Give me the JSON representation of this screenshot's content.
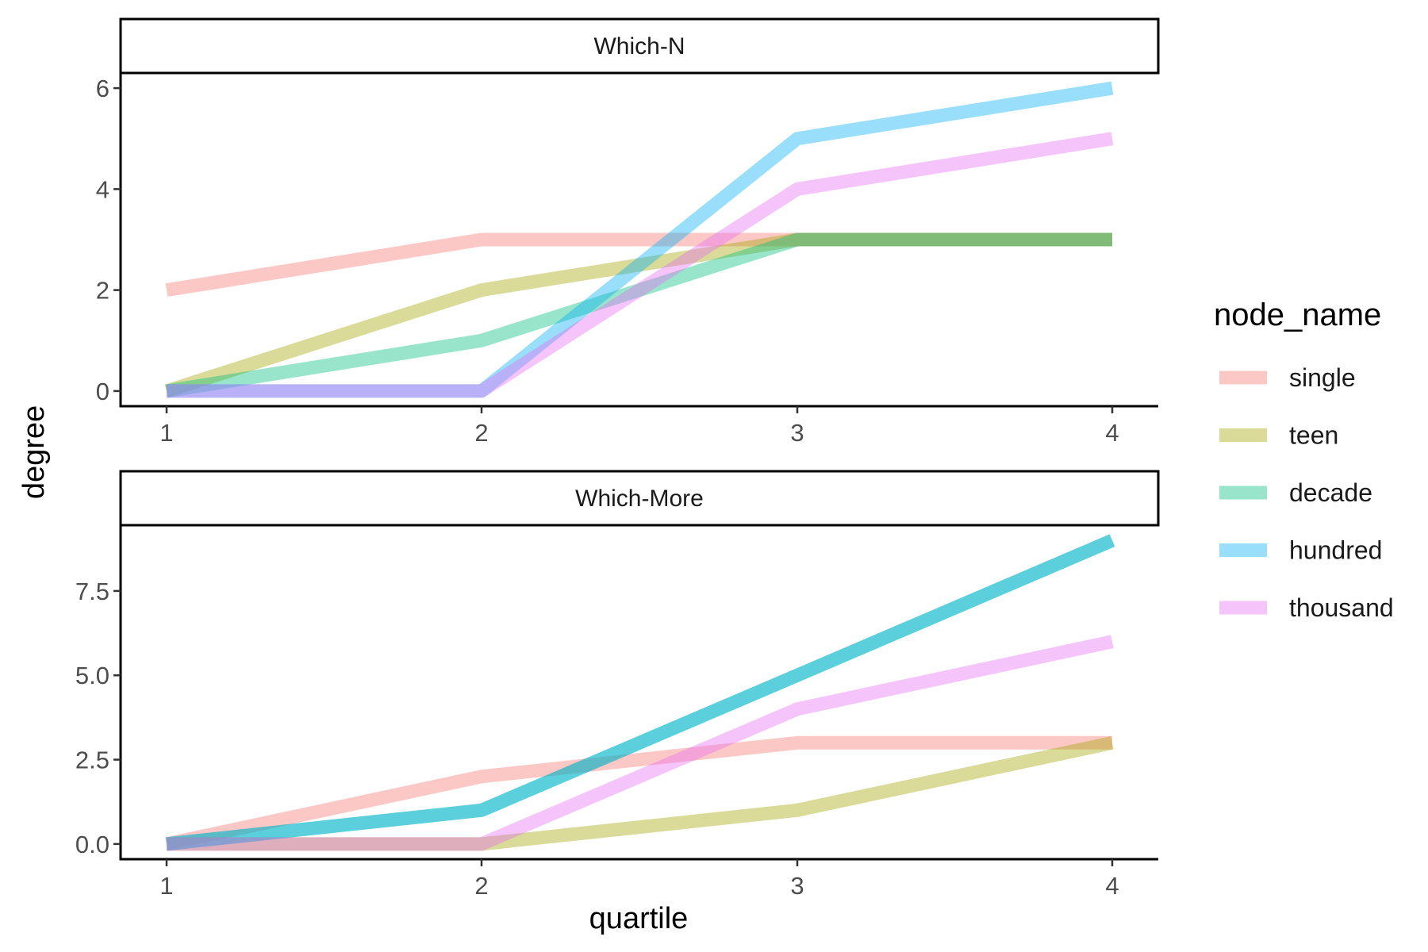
{
  "chart_data": {
    "type": "line",
    "xlabel": "quartile",
    "ylabel": "degree",
    "x": [
      1,
      2,
      3,
      4
    ],
    "x_ticks": [
      "1",
      "2",
      "3",
      "4"
    ],
    "legend": {
      "title": "node_name",
      "placement": "right",
      "entries": [
        {
          "name": "single",
          "color": "#F8766D"
        },
        {
          "name": "teen",
          "color": "#A3A500"
        },
        {
          "name": "decade",
          "color": "#00BF7D"
        },
        {
          "name": "hundred",
          "color": "#00B0F6"
        },
        {
          "name": "thousand",
          "color": "#E76BF3"
        }
      ]
    },
    "panels": [
      {
        "title": "Which-N",
        "ylim": [
          -0.3,
          6.3
        ],
        "y_ticks": [
          0,
          2,
          4,
          6
        ],
        "y_tick_labels": [
          "0",
          "2",
          "4",
          "6"
        ],
        "series": [
          {
            "name": "single",
            "values": [
              2,
              3,
              3,
              3
            ]
          },
          {
            "name": "teen",
            "values": [
              0,
              2,
              3,
              3
            ]
          },
          {
            "name": "decade",
            "values": [
              0,
              1,
              3,
              3
            ]
          },
          {
            "name": "hundred",
            "values": [
              0,
              0,
              5,
              6
            ]
          },
          {
            "name": "thousand",
            "values": [
              0,
              0,
              4,
              5
            ]
          }
        ]
      },
      {
        "title": "Which-More",
        "ylim": [
          -0.45,
          9.45
        ],
        "y_ticks": [
          0,
          2.5,
          5,
          7.5
        ],
        "y_tick_labels": [
          "0.0",
          "2.5",
          "5.0",
          "7.5"
        ],
        "series": [
          {
            "name": "single",
            "values": [
              0,
              2,
              3,
              3
            ]
          },
          {
            "name": "teen",
            "values": [
              0,
              0,
              1,
              3
            ]
          },
          {
            "name": "decade",
            "values": [
              0,
              1,
              5,
              9
            ]
          },
          {
            "name": "hundred",
            "values": [
              0,
              1,
              5,
              9
            ]
          },
          {
            "name": "thousand",
            "values": [
              0,
              0,
              4,
              6
            ]
          }
        ]
      }
    ]
  }
}
